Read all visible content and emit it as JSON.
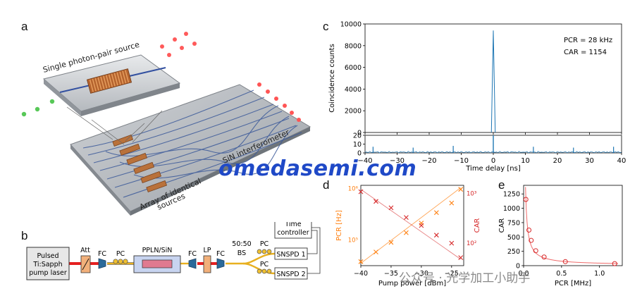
{
  "panels": {
    "a": "a",
    "b": "b",
    "c": "c",
    "d": "d",
    "e": "e"
  },
  "panel_a": {
    "source_label": "Single photon-pair source",
    "interferometer_label": "SiN interferometer",
    "array_label_1": "Array of identical",
    "array_label_2": "sources"
  },
  "panel_b": {
    "laser_1": "Pulsed",
    "laser_2": "Ti:Sapph",
    "laser_3": "pump laser",
    "att": "Att",
    "fc1": "FC",
    "pc1": "PC",
    "chip": "PPLN/SiN",
    "fc2": "FC",
    "lp": "LP",
    "fc3": "FC",
    "bs_1": "50:50",
    "bs_2": "BS",
    "pc2": "PC",
    "pc3": "PC",
    "snspd1": "SNSPD 1",
    "snspd2": "SNSPD 2",
    "tc_1": "Time",
    "tc_2": "controller"
  },
  "watermark": "omedasemi.com",
  "wechat_mark": "公众号 · 光学加工小助手",
  "colors": {
    "blue": "#1f77b4",
    "orange": "#ff7f0e",
    "red": "#d62728",
    "pink": "#ef6b6b"
  },
  "chart_data": [
    {
      "type": "line",
      "panel": "c",
      "ylabel": "Coincidence counts",
      "xlabel": "Time delay [ns]",
      "xlim": [
        -40,
        40
      ],
      "ylim_main": [
        0,
        10000
      ],
      "ylim_inset": [
        0,
        20
      ],
      "yticks_main": [
        "0",
        "2000",
        "4000",
        "6000",
        "8000",
        "10000"
      ],
      "yticks_inset": [
        "0",
        "10",
        "20"
      ],
      "xticks": [
        "−40",
        "−30",
        "−20",
        "−10",
        "0",
        "10",
        "20",
        "30",
        "40"
      ],
      "annotation_1": "PCR = 28 kHz",
      "annotation_2": "CAR = 1154",
      "peak_x": 0,
      "peak_y": 9400,
      "side_peaks_x": [
        -37.5,
        -25,
        -12.5,
        12.5,
        25,
        37.5
      ],
      "side_peaks_y": [
        7,
        6,
        8,
        7,
        6,
        7
      ]
    },
    {
      "type": "scatter",
      "panel": "d",
      "xlabel": "Pump power [dBm]",
      "ylabel_left": "PCR [Hz]",
      "ylabel_right": "CAR",
      "xlim": [
        -40,
        -23
      ],
      "xticks": [
        "−40",
        "−35",
        "−30",
        "−25"
      ],
      "yticks_left": [
        "10⁵",
        "10⁶"
      ],
      "yticks_right": [
        "10²",
        "10³"
      ],
      "series": [
        {
          "name": "PCR [Hz]",
          "x": [
            -40,
            -37.5,
            -35,
            -32.5,
            -30,
            -27.5,
            -25,
            -23.5
          ],
          "values": [
            0.05,
            0.17,
            0.29,
            0.41,
            0.53,
            0.66,
            0.78,
            0.95
          ]
        },
        {
          "name": "CAR",
          "x": [
            -40,
            -37.5,
            -35,
            -32.5,
            -30,
            -27.5,
            -25,
            -23.5
          ],
          "values": [
            0.92,
            0.8,
            0.72,
            0.6,
            0.5,
            0.38,
            0.28,
            0.1
          ]
        }
      ]
    },
    {
      "type": "scatter",
      "panel": "e",
      "xlabel": "PCR [MHz]",
      "ylabel": "CAR",
      "xlim": [
        0,
        1.3
      ],
      "ylim": [
        0,
        1400
      ],
      "xticks": [
        "0.0",
        "0.5",
        "1.0"
      ],
      "yticks": [
        "0",
        "250",
        "500",
        "750",
        "1000",
        "1250"
      ],
      "x": [
        0.03,
        0.07,
        0.1,
        0.16,
        0.27,
        0.55,
        1.2
      ],
      "values": [
        1154,
        620,
        440,
        260,
        150,
        70,
        35
      ]
    }
  ]
}
